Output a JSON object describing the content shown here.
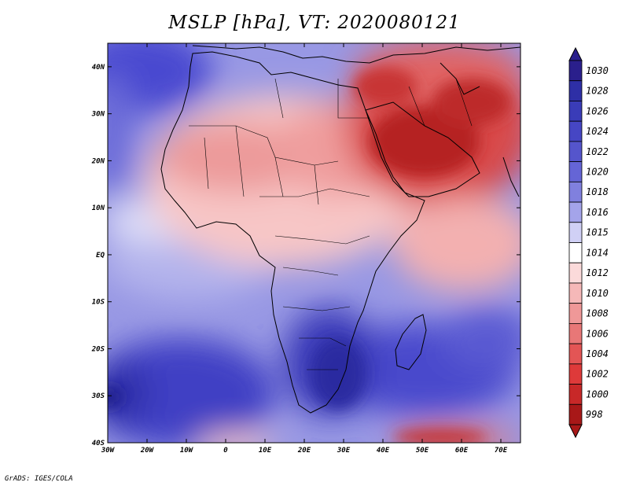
{
  "title": "MSLP [hPa], VT: 2020080121",
  "credit": "GrADS: IGES/COLA",
  "map": {
    "lon_ticks": [
      {
        "label": "30W",
        "lon": -30
      },
      {
        "label": "20W",
        "lon": -20
      },
      {
        "label": "10W",
        "lon": -10
      },
      {
        "label": "0",
        "lon": 0
      },
      {
        "label": "10E",
        "lon": 10
      },
      {
        "label": "20E",
        "lon": 20
      },
      {
        "label": "30E",
        "lon": 30
      },
      {
        "label": "40E",
        "lon": 40
      },
      {
        "label": "50E",
        "lon": 50
      },
      {
        "label": "60E",
        "lon": 60
      },
      {
        "label": "70E",
        "lon": 70
      }
    ],
    "lat_ticks": [
      {
        "label": "40N",
        "lat": 40
      },
      {
        "label": "30N",
        "lat": 30
      },
      {
        "label": "20N",
        "lat": 20
      },
      {
        "label": "10N",
        "lat": 10
      },
      {
        "label": "EQ",
        "lat": 0
      },
      {
        "label": "10S",
        "lat": -10
      },
      {
        "label": "20S",
        "lat": -20
      },
      {
        "label": "30S",
        "lat": -30
      },
      {
        "label": "40S",
        "lat": -40
      }
    ],
    "lon_range": [
      -30,
      75
    ],
    "lat_range": [
      -40,
      45
    ]
  },
  "legend": {
    "levels": [
      "1030",
      "1028",
      "1026",
      "1024",
      "1022",
      "1020",
      "1018",
      "1016",
      "1015",
      "1014",
      "1012",
      "1010",
      "1008",
      "1006",
      "1004",
      "1002",
      "1000",
      "998"
    ],
    "colors": [
      "#2a1f8c",
      "#2e2fa6",
      "#3a3cb8",
      "#4646c4",
      "#5555cc",
      "#6565d6",
      "#8080de",
      "#a4a4ea",
      "#d0d0f5",
      "#ffffff",
      "#fbdada",
      "#f5b8b8",
      "#ef9898",
      "#e87777",
      "#e35555",
      "#de3a3a",
      "#c82828",
      "#a81818"
    ]
  }
}
